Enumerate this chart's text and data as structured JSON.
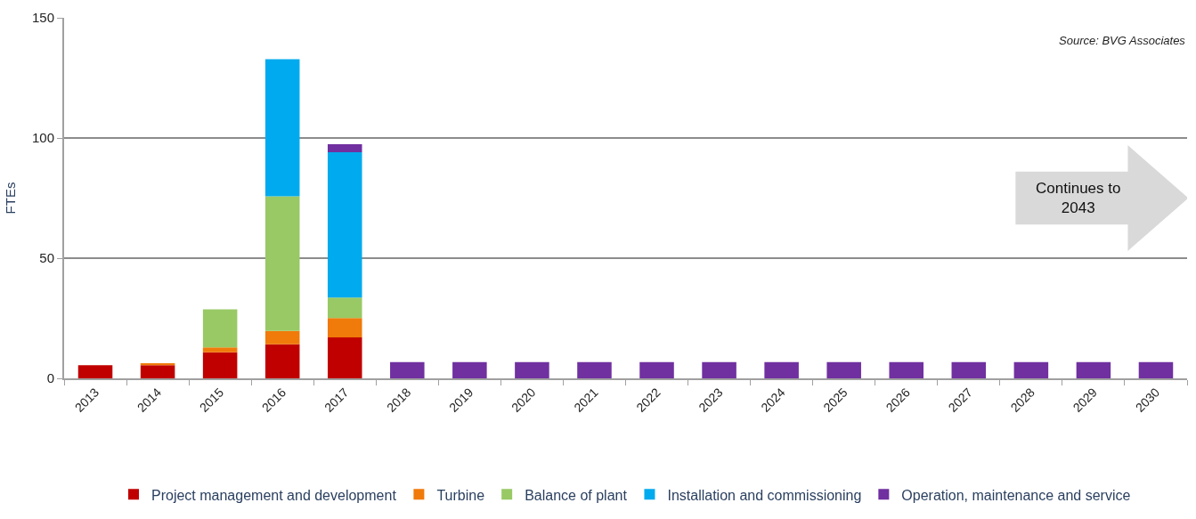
{
  "chart_data": {
    "type": "bar",
    "stacked": true,
    "ylabel": "FTEs",
    "categories": [
      "2013",
      "2014",
      "2015",
      "2016",
      "2017",
      "2018",
      "2019",
      "2020",
      "2021",
      "2022",
      "2023",
      "2024",
      "2025",
      "2026",
      "2027",
      "2028",
      "2029",
      "2030"
    ],
    "series": [
      {
        "name": "Project management and development",
        "color": "#c00000",
        "values": [
          5.5,
          5.5,
          10.8,
          14.2,
          17.0,
          null,
          null,
          null,
          null,
          null,
          null,
          null,
          null,
          null,
          null,
          null,
          null,
          null
        ]
      },
      {
        "name": "Turbine",
        "color": "#f07a0a",
        "values": [
          null,
          0.8,
          2.1,
          5.5,
          8.1,
          null,
          null,
          null,
          null,
          null,
          null,
          null,
          null,
          null,
          null,
          null,
          null,
          null
        ]
      },
      {
        "name": "Balance of plant",
        "color": "#98c965",
        "values": [
          null,
          null,
          15.8,
          56.0,
          8.5,
          null,
          null,
          null,
          null,
          null,
          null,
          null,
          null,
          null,
          null,
          null,
          null,
          null
        ]
      },
      {
        "name": "Installation and commissioning",
        "color": "#00aaee",
        "values": [
          null,
          null,
          null,
          57.1,
          60.5,
          null,
          null,
          null,
          null,
          null,
          null,
          null,
          null,
          null,
          null,
          null,
          null,
          null
        ]
      },
      {
        "name": "Operation, maintenance and service",
        "color": "#7030a0",
        "values": [
          null,
          null,
          null,
          null,
          3.3,
          6.8,
          6.8,
          6.8,
          6.8,
          6.8,
          6.8,
          6.8,
          6.8,
          6.8,
          6.8,
          6.8,
          6.8,
          6.8
        ]
      }
    ],
    "ylim": [
      0,
      150
    ],
    "yticks": [
      0,
      50,
      100,
      150
    ],
    "grid": "y",
    "legend": "bottom",
    "annotations": [
      "Source: BVG Associates",
      "Continues to\n2043"
    ]
  }
}
